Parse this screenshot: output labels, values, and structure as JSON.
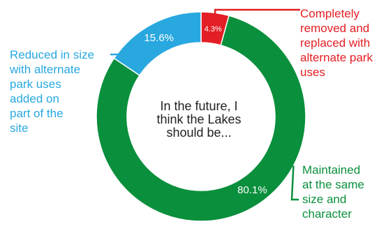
{
  "chart_data": {
    "type": "pie",
    "subtype": "donut",
    "center_label": [
      "In the future, I",
      "think the Lakes",
      "should be..."
    ],
    "slices": [
      {
        "value": 4.3,
        "value_label": "4.3%",
        "callout": [
          "Completely",
          "removed and",
          "replaced with",
          "alternate park",
          "uses"
        ],
        "color": "#e31e24"
      },
      {
        "value": 80.1,
        "value_label": "80.1%",
        "callout": [
          "Maintained",
          "at the same",
          "size and",
          "character"
        ],
        "color": "#0a8f3c"
      },
      {
        "value": 15.6,
        "value_label": "15.6%",
        "callout": [
          "Reduced in size",
          "with alternate",
          "park uses",
          "added on",
          "part of the",
          "site"
        ],
        "color": "#29a8e0"
      }
    ]
  }
}
